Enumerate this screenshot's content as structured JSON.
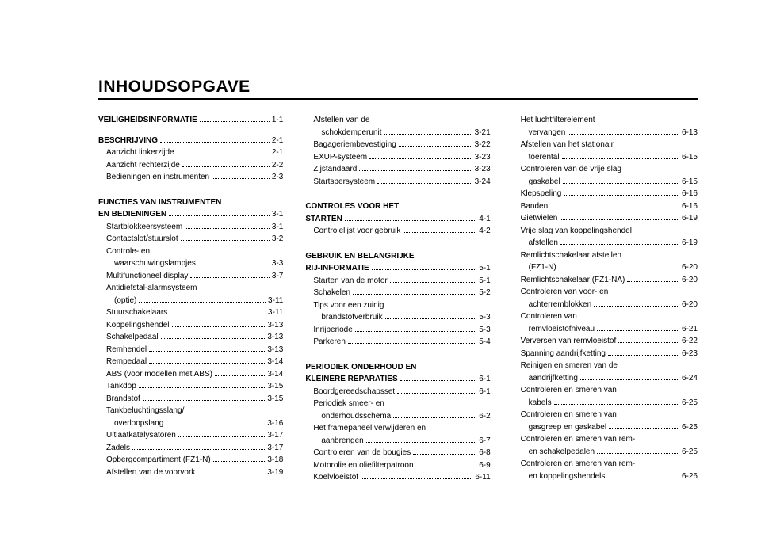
{
  "title": "INHOUDSOPGAVE",
  "columns": [
    [
      {
        "type": "head-entry",
        "label": "VEILIGHEIDSINFORMATIE",
        "page": "1-1"
      },
      {
        "type": "spacer"
      },
      {
        "type": "head-entry",
        "label": "BESCHRIJVING",
        "page": "2-1"
      },
      {
        "type": "entry",
        "indent": true,
        "label": "Aanzicht linkerzijde",
        "page": "2-1"
      },
      {
        "type": "entry",
        "indent": true,
        "label": "Aanzicht rechterzijde",
        "page": "2-2"
      },
      {
        "type": "entry",
        "indent": true,
        "label": "Bedieningen en instrumenten",
        "page": "2-3"
      },
      {
        "type": "spacer"
      },
      {
        "type": "head",
        "label": "FUNCTIES VAN INSTRUMENTEN"
      },
      {
        "type": "head-entry",
        "label": "EN BEDIENINGEN",
        "page": "3-1"
      },
      {
        "type": "entry",
        "indent": true,
        "label": "Startblokkeersysteem",
        "page": "3-1"
      },
      {
        "type": "entry",
        "indent": true,
        "label": "Contactslot/stuurslot",
        "page": "3-2"
      },
      {
        "type": "cont",
        "indent": true,
        "label": "Controle- en"
      },
      {
        "type": "entry",
        "indent": true,
        "cont": true,
        "label": "waarschuwingslampjes",
        "page": "3-3"
      },
      {
        "type": "entry",
        "indent": true,
        "label": "Multifunctioneel display",
        "page": "3-7"
      },
      {
        "type": "cont",
        "indent": true,
        "label": "Antidiefstal-alarmsysteem"
      },
      {
        "type": "entry",
        "indent": true,
        "cont": true,
        "label": "(optie)",
        "page": "3-11"
      },
      {
        "type": "entry",
        "indent": true,
        "label": "Stuurschakelaars",
        "page": "3-11"
      },
      {
        "type": "entry",
        "indent": true,
        "label": "Koppelingshendel",
        "page": "3-13"
      },
      {
        "type": "entry",
        "indent": true,
        "label": "Schakelpedaal",
        "page": "3-13"
      },
      {
        "type": "entry",
        "indent": true,
        "label": "Remhendel",
        "page": "3-13"
      },
      {
        "type": "entry",
        "indent": true,
        "label": "Rempedaal",
        "page": "3-14"
      },
      {
        "type": "entry",
        "indent": true,
        "label": "ABS (voor modellen met ABS)",
        "page": "3-14"
      },
      {
        "type": "entry",
        "indent": true,
        "label": "Tankdop",
        "page": "3-15"
      },
      {
        "type": "entry",
        "indent": true,
        "label": "Brandstof",
        "page": "3-15"
      },
      {
        "type": "cont",
        "indent": true,
        "label": "Tankbeluchtingsslang/"
      },
      {
        "type": "entry",
        "indent": true,
        "cont": true,
        "label": "overloopslang",
        "page": "3-16"
      },
      {
        "type": "entry",
        "indent": true,
        "label": "Uitlaatkatalysatoren",
        "page": "3-17"
      },
      {
        "type": "entry",
        "indent": true,
        "label": "Zadels",
        "page": "3-17"
      },
      {
        "type": "entry",
        "indent": true,
        "label": "Opbergcompartiment (FZ1-N)",
        "page": "3-18"
      },
      {
        "type": "entry",
        "indent": true,
        "label": "Afstellen van de voorvork",
        "page": "3-19"
      }
    ],
    [
      {
        "type": "cont",
        "indent": true,
        "label": "Afstellen van de"
      },
      {
        "type": "entry",
        "indent": true,
        "cont": true,
        "label": "schokdemperunit",
        "page": "3-21"
      },
      {
        "type": "entry",
        "indent": true,
        "label": "Bagageriembevestiging",
        "page": "3-22"
      },
      {
        "type": "entry",
        "indent": true,
        "label": "EXUP-systeem",
        "page": "3-23"
      },
      {
        "type": "entry",
        "indent": true,
        "label": "Zijstandaard",
        "page": "3-23"
      },
      {
        "type": "entry",
        "indent": true,
        "label": "Startspersysteem",
        "page": "3-24"
      },
      {
        "type": "spacer"
      },
      {
        "type": "head",
        "label": "CONTROLES VOOR HET"
      },
      {
        "type": "head-entry",
        "label": "STARTEN",
        "page": "4-1"
      },
      {
        "type": "entry",
        "indent": true,
        "label": "Controlelijst voor gebruik",
        "page": "4-2"
      },
      {
        "type": "spacer"
      },
      {
        "type": "head",
        "label": "GEBRUIK EN BELANGRIJKE"
      },
      {
        "type": "head-entry",
        "label": "RIJ-INFORMATIE",
        "page": "5-1"
      },
      {
        "type": "entry",
        "indent": true,
        "label": "Starten van de motor",
        "page": "5-1"
      },
      {
        "type": "entry",
        "indent": true,
        "label": "Schakelen",
        "page": "5-2"
      },
      {
        "type": "cont",
        "indent": true,
        "label": "Tips voor een zuinig"
      },
      {
        "type": "entry",
        "indent": true,
        "cont": true,
        "label": "brandstofverbruik",
        "page": "5-3"
      },
      {
        "type": "entry",
        "indent": true,
        "label": "Inrijperiode",
        "page": "5-3"
      },
      {
        "type": "entry",
        "indent": true,
        "label": "Parkeren",
        "page": "5-4"
      },
      {
        "type": "spacer"
      },
      {
        "type": "head",
        "label": "PERIODIEK ONDERHOUD EN"
      },
      {
        "type": "head-entry",
        "label": "KLEINERE REPARATIES",
        "page": "6-1"
      },
      {
        "type": "entry",
        "indent": true,
        "label": "Boordgereedschapsset",
        "page": "6-1"
      },
      {
        "type": "cont",
        "indent": true,
        "label": "Periodiek smeer- en"
      },
      {
        "type": "entry",
        "indent": true,
        "cont": true,
        "label": "onderhoudsschema",
        "page": "6-2"
      },
      {
        "type": "cont",
        "indent": true,
        "label": "Het framepaneel verwijderen en"
      },
      {
        "type": "entry",
        "indent": true,
        "cont": true,
        "label": "aanbrengen",
        "page": "6-7"
      },
      {
        "type": "entry",
        "indent": true,
        "label": "Controleren van de bougies",
        "page": "6-8"
      },
      {
        "type": "entry",
        "indent": true,
        "label": "Motorolie en oliefilterpatroon",
        "page": "6-9"
      },
      {
        "type": "entry",
        "indent": true,
        "label": "Koelvloeistof",
        "page": "6-11"
      }
    ],
    [
      {
        "type": "cont",
        "indent": true,
        "label": "Het luchtfilterelement"
      },
      {
        "type": "entry",
        "indent": true,
        "cont": true,
        "label": "vervangen",
        "page": "6-13"
      },
      {
        "type": "cont",
        "indent": true,
        "label": "Afstellen van het stationair"
      },
      {
        "type": "entry",
        "indent": true,
        "cont": true,
        "label": "toerental",
        "page": "6-15"
      },
      {
        "type": "cont",
        "indent": true,
        "label": "Controleren van de vrije slag"
      },
      {
        "type": "entry",
        "indent": true,
        "cont": true,
        "label": "gaskabel",
        "page": "6-15"
      },
      {
        "type": "entry",
        "indent": true,
        "label": "Klepspeling",
        "page": "6-16"
      },
      {
        "type": "entry",
        "indent": true,
        "label": "Banden",
        "page": "6-16"
      },
      {
        "type": "entry",
        "indent": true,
        "label": "Gietwielen",
        "page": "6-19"
      },
      {
        "type": "cont",
        "indent": true,
        "label": "Vrije slag van koppelingshendel"
      },
      {
        "type": "entry",
        "indent": true,
        "cont": true,
        "label": "afstellen",
        "page": "6-19"
      },
      {
        "type": "cont",
        "indent": true,
        "label": "Remlichtschakelaar afstellen"
      },
      {
        "type": "entry",
        "indent": true,
        "cont": true,
        "label": "(FZ1-N)",
        "page": "6-20"
      },
      {
        "type": "entry",
        "indent": true,
        "label": "Remlichtschakelaar (FZ1-NA)",
        "page": "6-20"
      },
      {
        "type": "cont",
        "indent": true,
        "label": "Controleren van voor- en"
      },
      {
        "type": "entry",
        "indent": true,
        "cont": true,
        "label": "achterremblokken",
        "page": "6-20"
      },
      {
        "type": "cont",
        "indent": true,
        "label": "Controleren van"
      },
      {
        "type": "entry",
        "indent": true,
        "cont": true,
        "label": "remvloeistofniveau",
        "page": "6-21"
      },
      {
        "type": "entry",
        "indent": true,
        "label": "Verversen van remvloeistof",
        "page": "6-22"
      },
      {
        "type": "entry",
        "indent": true,
        "label": "Spanning aandrijfketting",
        "page": "6-23"
      },
      {
        "type": "cont",
        "indent": true,
        "label": "Reinigen en smeren van de"
      },
      {
        "type": "entry",
        "indent": true,
        "cont": true,
        "label": "aandrijfketting",
        "page": "6-24"
      },
      {
        "type": "cont",
        "indent": true,
        "label": "Controleren en smeren van"
      },
      {
        "type": "entry",
        "indent": true,
        "cont": true,
        "label": "kabels",
        "page": "6-25"
      },
      {
        "type": "cont",
        "indent": true,
        "label": "Controleren en smeren van"
      },
      {
        "type": "entry",
        "indent": true,
        "cont": true,
        "label": "gasgreep en gaskabel",
        "page": "6-25"
      },
      {
        "type": "cont",
        "indent": true,
        "label": "Controleren en smeren van rem-"
      },
      {
        "type": "entry",
        "indent": true,
        "cont": true,
        "label": "en schakelpedalen",
        "page": "6-25"
      },
      {
        "type": "cont",
        "indent": true,
        "label": "Controleren en smeren van rem-"
      },
      {
        "type": "entry",
        "indent": true,
        "cont": true,
        "label": "en koppelingshendels",
        "page": "6-26"
      }
    ]
  ]
}
